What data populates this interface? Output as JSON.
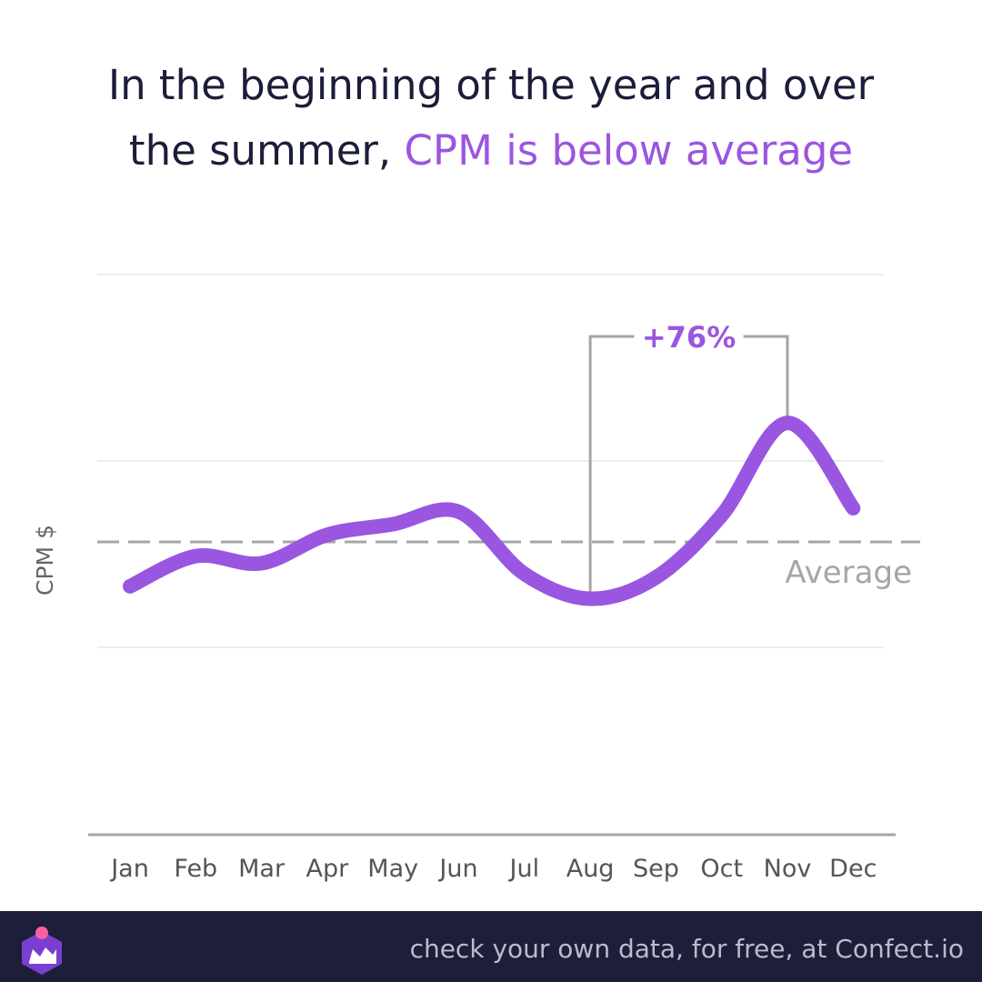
{
  "title": {
    "part1": "In the beginning of the year and over",
    "part2": "the summer, ",
    "highlight": "CPM is below average"
  },
  "chart_data": {
    "type": "line",
    "categories": [
      "Jan",
      "Feb",
      "Mar",
      "Apr",
      "May",
      "Jun",
      "Jul",
      "Aug",
      "Sep",
      "Oct",
      "Nov",
      "Dec"
    ],
    "series": [
      {
        "values": [
          -0.25,
          -0.08,
          -0.12,
          0.04,
          0.1,
          0.17,
          -0.18,
          -0.32,
          -0.2,
          0.15,
          0.67,
          0.19
        ]
      }
    ],
    "average": 0,
    "average_label": "Average",
    "ylabel": "CPM $",
    "ylim": [
      -1.5,
      1.5
    ],
    "annotation": {
      "from": "Aug",
      "to": "Nov",
      "label": "+76%"
    },
    "line_color": "#9a56e0",
    "grid": true
  },
  "footer": {
    "text": "check your own data, for free, at Confect.io"
  },
  "colors": {
    "accent": "#9a56e0",
    "dark": "#1d1f3a",
    "axis": "#a6a6a6"
  }
}
